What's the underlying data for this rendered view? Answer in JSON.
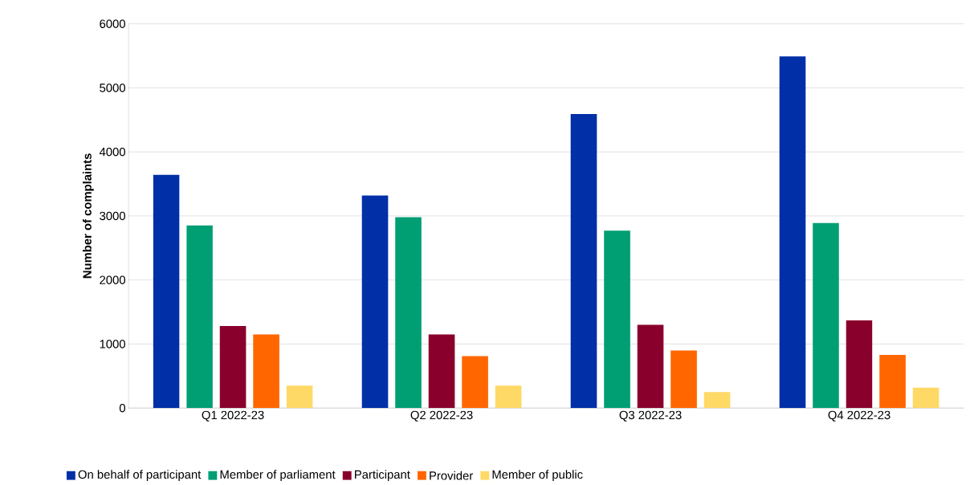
{
  "chart_data": {
    "type": "bar",
    "ylabel": "Number of complaints",
    "categories": [
      "Q1 2022-23",
      "Q2 2022-23",
      "Q3 2022-23",
      "Q4 2022-23"
    ],
    "series": [
      {
        "name": "On behalf of participant",
        "color": "#002fa7",
        "values": [
          3640,
          3320,
          4590,
          5490
        ]
      },
      {
        "name": "Member of parliament",
        "color": "#009e73",
        "values": [
          2850,
          2980,
          2770,
          2890
        ]
      },
      {
        "name": "Participant",
        "color": "#8a002d",
        "values": [
          1280,
          1150,
          1300,
          1370
        ]
      },
      {
        "name": "Provider",
        "color": "#ff6600",
        "values": [
          1150,
          810,
          900,
          830
        ]
      },
      {
        "name": "Member of public",
        "color": "#ffd966",
        "values": [
          350,
          350,
          250,
          320
        ]
      }
    ],
    "ylim": [
      0,
      6000
    ],
    "yticks": [
      0,
      1000,
      2000,
      3000,
      4000,
      5000,
      6000
    ],
    "grid": "y",
    "legend": "bottom"
  }
}
